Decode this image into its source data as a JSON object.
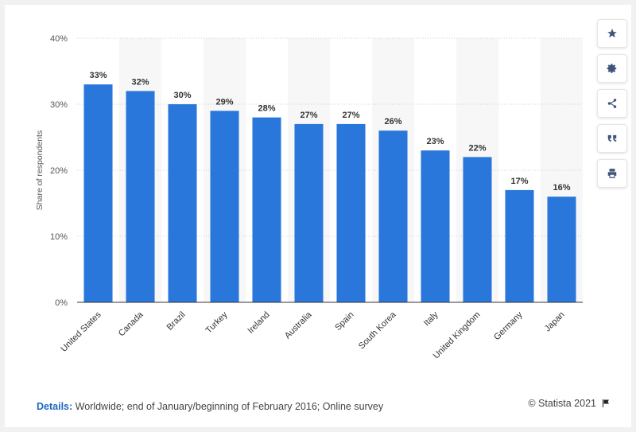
{
  "chart_data": {
    "type": "bar",
    "categories": [
      "United States",
      "Canada",
      "Brazil",
      "Turkey",
      "Ireland",
      "Australia",
      "Spain",
      "South Korea",
      "Italy",
      "United Kingdom",
      "Germany",
      "Japan"
    ],
    "values": [
      33,
      32,
      30,
      29,
      28,
      27,
      27,
      26,
      23,
      22,
      17,
      16
    ],
    "value_labels": [
      "33%",
      "32%",
      "30%",
      "29%",
      "28%",
      "27%",
      "27%",
      "26%",
      "23%",
      "22%",
      "17%",
      "16%"
    ],
    "ylabel": "Share of respondents",
    "ylim": [
      0,
      40
    ],
    "yticks": [
      0,
      10,
      20,
      30,
      40
    ],
    "ytick_labels": [
      "0%",
      "10%",
      "20%",
      "30%",
      "40%"
    ],
    "grid": true,
    "bar_color": "#2a77dc"
  },
  "footer": {
    "details_label": "Details:",
    "details_text": "Worldwide; end of January/beginning of February 2016; Online survey",
    "credit": "© Statista 2021"
  },
  "toolbar": {
    "icons": [
      "star-icon",
      "gear-icon",
      "share-icon",
      "quote-icon",
      "print-icon"
    ]
  }
}
